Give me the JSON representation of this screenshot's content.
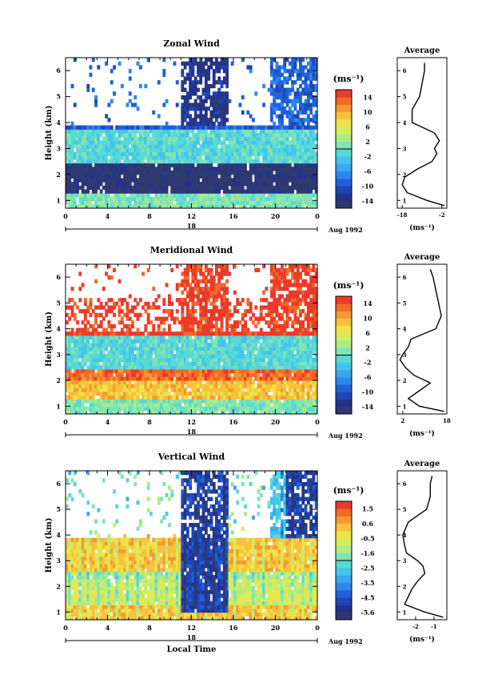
{
  "chart_data": [
    {
      "type": "heatmap",
      "title": "Zonal Wind",
      "ylabel": "Height (km)",
      "xlabel": "",
      "x_ticks": [
        "0",
        "4",
        "8",
        "12",
        "16",
        "20",
        "0"
      ],
      "y_ticks": [
        "1",
        "2",
        "3",
        "4",
        "5",
        "6"
      ],
      "ylim": [
        0.7,
        6.5
      ],
      "xlim": [
        0,
        24
      ],
      "date_day": "18",
      "date_label": "Aug 1992",
      "colorbar": {
        "unit": "(ms⁻¹)",
        "ticks": [
          "14",
          "10",
          "6",
          "2",
          "-2",
          "-6",
          "-10",
          "-14"
        ],
        "range": [
          -16,
          16
        ]
      },
      "average": {
        "title": "Average",
        "xlabel": "(ms⁻¹)",
        "x_ticks": [
          "-18",
          "-2"
        ],
        "xlim": [
          -20,
          0
        ],
        "profile_heights": [
          0.8,
          1.0,
          1.3,
          1.6,
          1.9,
          2.2,
          2.5,
          2.8,
          3.0,
          3.3,
          3.6,
          4.0,
          4.5,
          5.0,
          5.5,
          6.0,
          6.3
        ],
        "profile_values": [
          -1,
          -8,
          -16,
          -18,
          -17,
          -12,
          -6,
          -4,
          -5,
          -3,
          -5,
          -14,
          -14,
          -11,
          -10,
          -9,
          -9
        ]
      }
    },
    {
      "type": "heatmap",
      "title": "Meridional Wind",
      "ylabel": "Height (km)",
      "xlabel": "",
      "x_ticks": [
        "0",
        "4",
        "8",
        "12",
        "16",
        "20",
        "0"
      ],
      "y_ticks": [
        "1",
        "2",
        "3",
        "4",
        "5",
        "6"
      ],
      "ylim": [
        0.7,
        6.5
      ],
      "xlim": [
        0,
        24
      ],
      "date_day": "18",
      "date_label": "Aug 1992",
      "colorbar": {
        "unit": "(ms⁻¹)",
        "ticks": [
          "14",
          "10",
          "6",
          "2",
          "-2",
          "-6",
          "-10",
          "-14"
        ],
        "range": [
          -16,
          16
        ]
      },
      "average": {
        "title": "Average",
        "xlabel": "(ms⁻¹)",
        "x_ticks": [
          "2",
          "18"
        ],
        "xlim": [
          0,
          18
        ],
        "profile_heights": [
          0.8,
          1.0,
          1.3,
          1.6,
          1.9,
          2.2,
          2.5,
          2.8,
          3.0,
          3.3,
          3.6,
          4.0,
          4.5,
          5.0,
          5.5,
          6.0,
          6.3
        ],
        "profile_values": [
          17,
          8,
          4,
          8,
          12,
          6,
          3,
          1,
          2,
          4,
          5,
          14,
          16,
          15,
          14,
          13,
          12
        ]
      }
    },
    {
      "type": "heatmap",
      "title": "Vertical Wind",
      "ylabel": "Height (km)",
      "xlabel": "Local Time",
      "x_ticks": [
        "0",
        "4",
        "8",
        "12",
        "16",
        "20",
        "0"
      ],
      "y_ticks": [
        "1",
        "2",
        "3",
        "4",
        "5",
        "6"
      ],
      "ylim": [
        0.7,
        6.5
      ],
      "xlim": [
        0,
        24
      ],
      "date_day": "18",
      "date_label": "Aug 1992",
      "colorbar": {
        "unit": "(ms⁻¹)",
        "ticks": [
          "1.5",
          "0.6",
          "-0.5",
          "-1.6",
          "-2.5",
          "-3.5",
          "-4.5",
          "-5.6"
        ],
        "range": [
          -6,
          2
        ]
      },
      "average": {
        "title": "Average",
        "xlabel": "(ms⁻¹)",
        "x_ticks": [
          "-2",
          "-1"
        ],
        "xlim": [
          -3,
          -0.3
        ],
        "profile_heights": [
          0.8,
          1.0,
          1.3,
          1.6,
          1.9,
          2.2,
          2.5,
          2.8,
          3.0,
          3.3,
          3.6,
          4.0,
          4.5,
          5.0,
          5.5,
          6.0,
          6.3
        ],
        "profile_values": [
          -0.5,
          -1.5,
          -2.6,
          -2.4,
          -2.2,
          -1.9,
          -1.5,
          -1.6,
          -1.9,
          -2.5,
          -2.6,
          -2.7,
          -2.4,
          -1.4,
          -1.2,
          -1.2,
          -1.1
        ]
      }
    }
  ]
}
